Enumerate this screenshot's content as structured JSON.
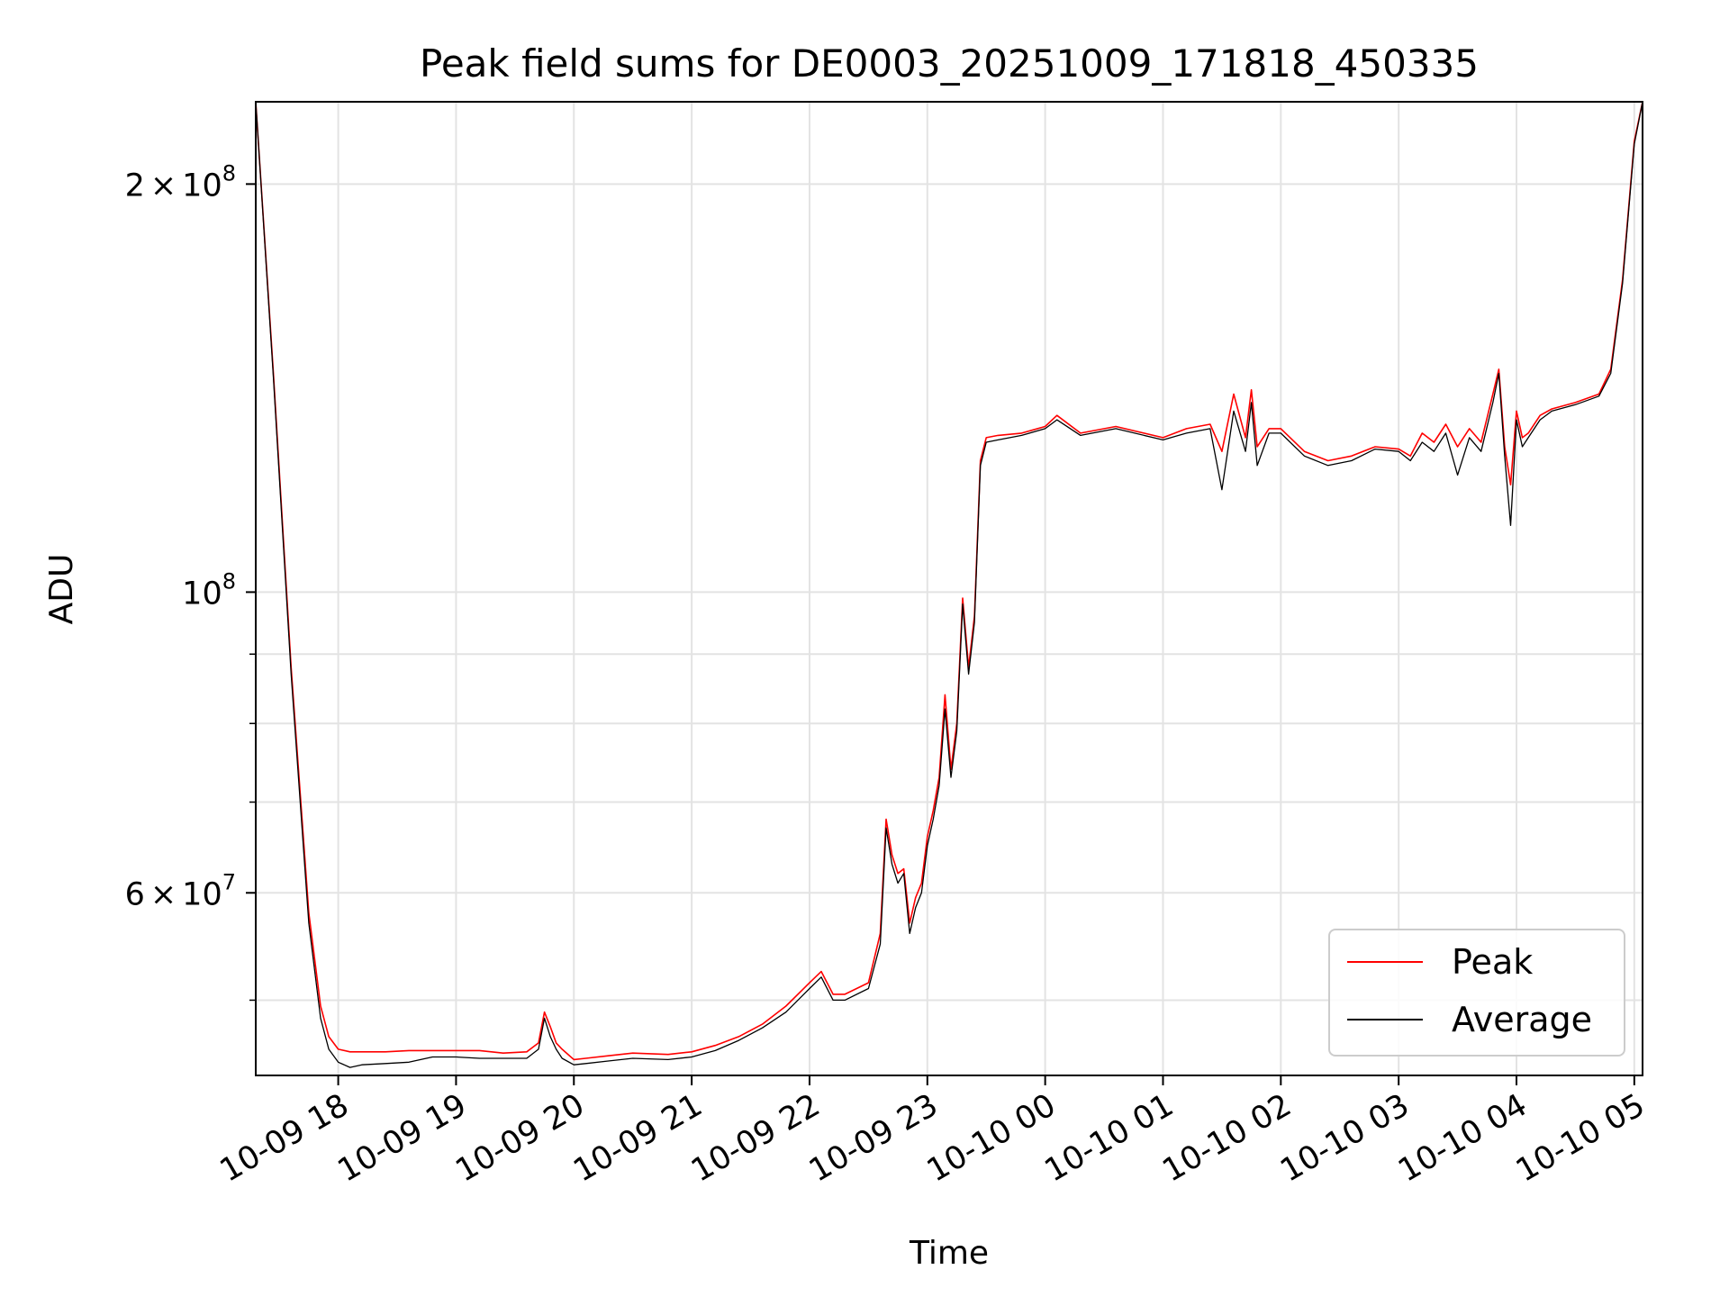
{
  "chart_data": {
    "type": "line",
    "title": "Peak field sums for DE0003_20251009_171818_450335",
    "xlabel": "Time",
    "ylabel": "ADU",
    "yscale": "log",
    "ylim": [
      44000000,
      230000000
    ],
    "xlim": [
      17.3,
      29.07
    ],
    "grid": true,
    "legend_position": "lower-right",
    "x_unit": "hours since 2025-10-09 00:00",
    "x_ticks": [
      {
        "x": 18,
        "label": "10-09 18"
      },
      {
        "x": 19,
        "label": "10-09 19"
      },
      {
        "x": 20,
        "label": "10-09 20"
      },
      {
        "x": 21,
        "label": "10-09 21"
      },
      {
        "x": 22,
        "label": "10-09 22"
      },
      {
        "x": 23,
        "label": "10-09 23"
      },
      {
        "x": 24,
        "label": "10-10 00"
      },
      {
        "x": 25,
        "label": "10-10 01"
      },
      {
        "x": 26,
        "label": "10-10 02"
      },
      {
        "x": 27,
        "label": "10-10 03"
      },
      {
        "x": 28,
        "label": "10-10 04"
      },
      {
        "x": 29,
        "label": "10-10 05"
      }
    ],
    "y_ticks": [
      {
        "y": 200000000,
        "mant": "2",
        "exp": "8"
      },
      {
        "y": 100000000,
        "mant": "",
        "exp": "8"
      },
      {
        "y": 60000000,
        "mant": "6",
        "exp": "7"
      }
    ],
    "y_minor_ticks": [
      50000000,
      70000000,
      80000000,
      90000000
    ],
    "series": [
      {
        "name": "Peak",
        "color": "#ff0000",
        "x": [
          17.3,
          17.45,
          17.6,
          17.75,
          17.85,
          17.92,
          18.0,
          18.1,
          18.2,
          18.4,
          18.6,
          18.8,
          19.0,
          19.2,
          19.4,
          19.6,
          19.7,
          19.75,
          19.8,
          19.85,
          19.9,
          20.0,
          20.1,
          20.3,
          20.5,
          20.8,
          21.0,
          21.2,
          21.4,
          21.6,
          21.8,
          22.0,
          22.1,
          22.2,
          22.3,
          22.5,
          22.6,
          22.65,
          22.7,
          22.75,
          22.8,
          22.85,
          22.9,
          22.95,
          23.0,
          23.05,
          23.1,
          23.15,
          23.2,
          23.25,
          23.3,
          23.35,
          23.4,
          23.45,
          23.5,
          23.6,
          23.8,
          24.0,
          24.1,
          24.3,
          24.6,
          25.0,
          25.2,
          25.4,
          25.5,
          25.6,
          25.7,
          25.75,
          25.8,
          25.9,
          26.0,
          26.2,
          26.4,
          26.6,
          26.8,
          27.0,
          27.1,
          27.2,
          27.3,
          27.4,
          27.5,
          27.6,
          27.7,
          27.8,
          27.85,
          27.9,
          27.95,
          28.0,
          28.05,
          28.1,
          28.2,
          28.3,
          28.5,
          28.7,
          28.8,
          28.9,
          29.0,
          29.07
        ],
        "values": [
          230000000,
          145000000,
          88000000,
          58000000,
          49500000,
          47000000,
          46000000,
          45800000,
          45800000,
          45800000,
          45900000,
          45900000,
          45900000,
          45900000,
          45700000,
          45800000,
          46500000,
          49000000,
          47800000,
          46500000,
          46000000,
          45200000,
          45300000,
          45500000,
          45700000,
          45600000,
          45800000,
          46300000,
          47000000,
          48000000,
          49500000,
          51500000,
          52500000,
          50500000,
          50500000,
          51500000,
          56000000,
          68000000,
          64000000,
          62000000,
          62500000,
          57000000,
          59500000,
          61000000,
          66000000,
          69000000,
          73000000,
          84000000,
          74000000,
          80000000,
          99000000,
          88000000,
          96000000,
          125000000,
          130000000,
          130500000,
          131000000,
          132500000,
          135000000,
          131000000,
          132500000,
          130000000,
          132000000,
          133000000,
          127000000,
          140000000,
          130000000,
          141000000,
          128000000,
          132000000,
          132000000,
          127000000,
          125000000,
          126000000,
          128000000,
          127500000,
          126000000,
          131000000,
          129000000,
          133000000,
          128000000,
          132000000,
          129000000,
          140000000,
          146000000,
          128000000,
          120000000,
          136000000,
          130000000,
          131000000,
          135000000,
          136500000,
          138000000,
          140000000,
          146000000,
          170000000,
          215000000,
          230000000
        ]
      },
      {
        "name": "Average",
        "color": "#000000",
        "x": [
          17.3,
          17.45,
          17.6,
          17.75,
          17.85,
          17.92,
          18.0,
          18.1,
          18.2,
          18.4,
          18.6,
          18.8,
          19.0,
          19.2,
          19.4,
          19.6,
          19.7,
          19.75,
          19.8,
          19.85,
          19.9,
          20.0,
          20.1,
          20.3,
          20.5,
          20.8,
          21.0,
          21.2,
          21.4,
          21.6,
          21.8,
          22.0,
          22.1,
          22.2,
          22.3,
          22.5,
          22.6,
          22.65,
          22.7,
          22.75,
          22.8,
          22.85,
          22.9,
          22.95,
          23.0,
          23.05,
          23.1,
          23.15,
          23.2,
          23.25,
          23.3,
          23.35,
          23.4,
          23.45,
          23.5,
          23.6,
          23.8,
          24.0,
          24.1,
          24.3,
          24.6,
          25.0,
          25.2,
          25.4,
          25.5,
          25.6,
          25.7,
          25.75,
          25.8,
          25.9,
          26.0,
          26.2,
          26.4,
          26.6,
          26.8,
          27.0,
          27.1,
          27.2,
          27.3,
          27.4,
          27.5,
          27.6,
          27.7,
          27.8,
          27.85,
          27.9,
          27.95,
          28.0,
          28.05,
          28.1,
          28.2,
          28.3,
          28.5,
          28.7,
          28.8,
          28.9,
          29.0,
          29.07
        ],
        "values": [
          230000000,
          144000000,
          87000000,
          57000000,
          48500000,
          46000000,
          45000000,
          44600000,
          44800000,
          44900000,
          45000000,
          45400000,
          45400000,
          45300000,
          45300000,
          45300000,
          46000000,
          48500000,
          47000000,
          46000000,
          45300000,
          44800000,
          44900000,
          45100000,
          45300000,
          45200000,
          45400000,
          45900000,
          46700000,
          47700000,
          49000000,
          51000000,
          52000000,
          50000000,
          50000000,
          51000000,
          55000000,
          67000000,
          63000000,
          61000000,
          62000000,
          56000000,
          58500000,
          60000000,
          65000000,
          68000000,
          72000000,
          82000000,
          73000000,
          79000000,
          98000000,
          87000000,
          95000000,
          124000000,
          129000000,
          129500000,
          130500000,
          132000000,
          134000000,
          130500000,
          132000000,
          129500000,
          131000000,
          132000000,
          119000000,
          136000000,
          127000000,
          138000000,
          124000000,
          131000000,
          131000000,
          126000000,
          124000000,
          125000000,
          127500000,
          127000000,
          125000000,
          129000000,
          127000000,
          131000000,
          122000000,
          130000000,
          127000000,
          138000000,
          145000000,
          126000000,
          112000000,
          134000000,
          128000000,
          130000000,
          134000000,
          136000000,
          137500000,
          139500000,
          145000000,
          169000000,
          214000000,
          230000000
        ]
      }
    ]
  }
}
